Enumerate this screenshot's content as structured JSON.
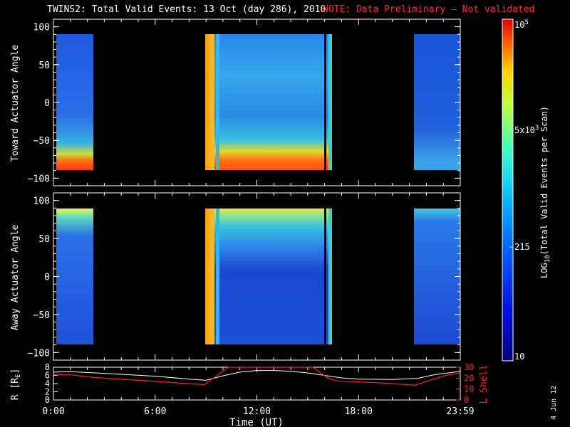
{
  "title": {
    "main": "TWINS2: Total Valid Events: 13 Oct (day 286), 2010",
    "note": "NOTE: Data Preliminary — Not validated"
  },
  "stamp": "4 Jun 12",
  "chart_data": [
    {
      "type": "heatmap",
      "ylabel": "Toward Actuator Angle",
      "ylim": [
        -110,
        110
      ],
      "yticks": [
        "100",
        "50",
        "0",
        "−50",
        "−100"
      ],
      "xlim_hours": [
        0,
        24
      ],
      "data_coverage_hours": [
        [
          0.15,
          2.2
        ],
        [
          9.05,
          16.6
        ],
        [
          21.3,
          24.0
        ]
      ],
      "angle_range": [
        -90,
        90
      ]
    },
    {
      "type": "heatmap",
      "ylabel": "Away Actuator Angle",
      "ylim": [
        -110,
        110
      ],
      "yticks": [
        "100",
        "50",
        "0",
        "−50",
        "−100"
      ],
      "xlim_hours": [
        0,
        24
      ],
      "data_coverage_hours": [
        [
          0.15,
          2.2
        ],
        [
          9.05,
          16.6
        ],
        [
          21.3,
          24.0
        ]
      ],
      "angle_range": [
        -90,
        90
      ]
    },
    {
      "type": "line",
      "ylabel_left": "R [RE]",
      "ylabel_right": "L Shell",
      "ylim_left": [
        0,
        8
      ],
      "ylim_right": [
        0,
        30
      ],
      "yticks_left": [
        "8",
        "6",
        "4",
        "2",
        "0"
      ],
      "yticks_right": [
        "30",
        "20",
        "10",
        "0"
      ],
      "xlabel": "Time (UT)",
      "xticks": [
        "0:00",
        "6:00",
        "12:00",
        "18:00",
        "23:59"
      ],
      "series": [
        {
          "name": "R",
          "color": "#ffffff",
          "x": [
            0,
            1,
            3,
            6,
            8,
            9,
            10,
            11,
            12,
            13,
            14,
            15,
            16,
            17,
            18,
            20,
            21.5,
            22.5,
            24
          ],
          "y": [
            6.8,
            6.9,
            6.5,
            5.8,
            5.1,
            4.8,
            5.9,
            6.8,
            7.2,
            7.2,
            7.0,
            6.6,
            6.0,
            5.4,
            5.1,
            5.0,
            5.3,
            6.2,
            7.0
          ]
        },
        {
          "name": "L Shell",
          "color": "#ff2020",
          "x": [
            0,
            1,
            2.5,
            6,
            8.9,
            9.6,
            10.3,
            15.3,
            16.2,
            16.7,
            18,
            19.5,
            21.3,
            23,
            24
          ],
          "y": [
            23,
            23,
            20.5,
            17,
            14,
            22,
            30,
            30,
            20,
            17.5,
            16.5,
            15.5,
            13.5,
            22,
            25
          ]
        }
      ]
    }
  ],
  "colorbar": {
    "label": "LOG10(Total Valid Events per Scan)",
    "label_prefix": "LOG",
    "label_sub": "10",
    "label_suffix": "(Total Valid Events per Scan)",
    "ticks": [
      {
        "base": "10",
        "exp": "5",
        "value_log": 5.0
      },
      {
        "base": "5x10",
        "exp": "3",
        "value_log": 3.699
      },
      {
        "base": "215",
        "exp": "",
        "value_log": 2.332
      },
      {
        "base": "10",
        "exp": "",
        "value_log": 1.0
      }
    ],
    "range_log": [
      1,
      5
    ]
  },
  "colors": {
    "low": "#1a2ab8",
    "mid": "#2a7fe8",
    "cyan": "#2ad6d6",
    "high": "#ff4a10",
    "orange": "#ff9a10",
    "line_r": "#ffffff",
    "line_l": "#ff2020",
    "note": "#ff2a2a"
  }
}
